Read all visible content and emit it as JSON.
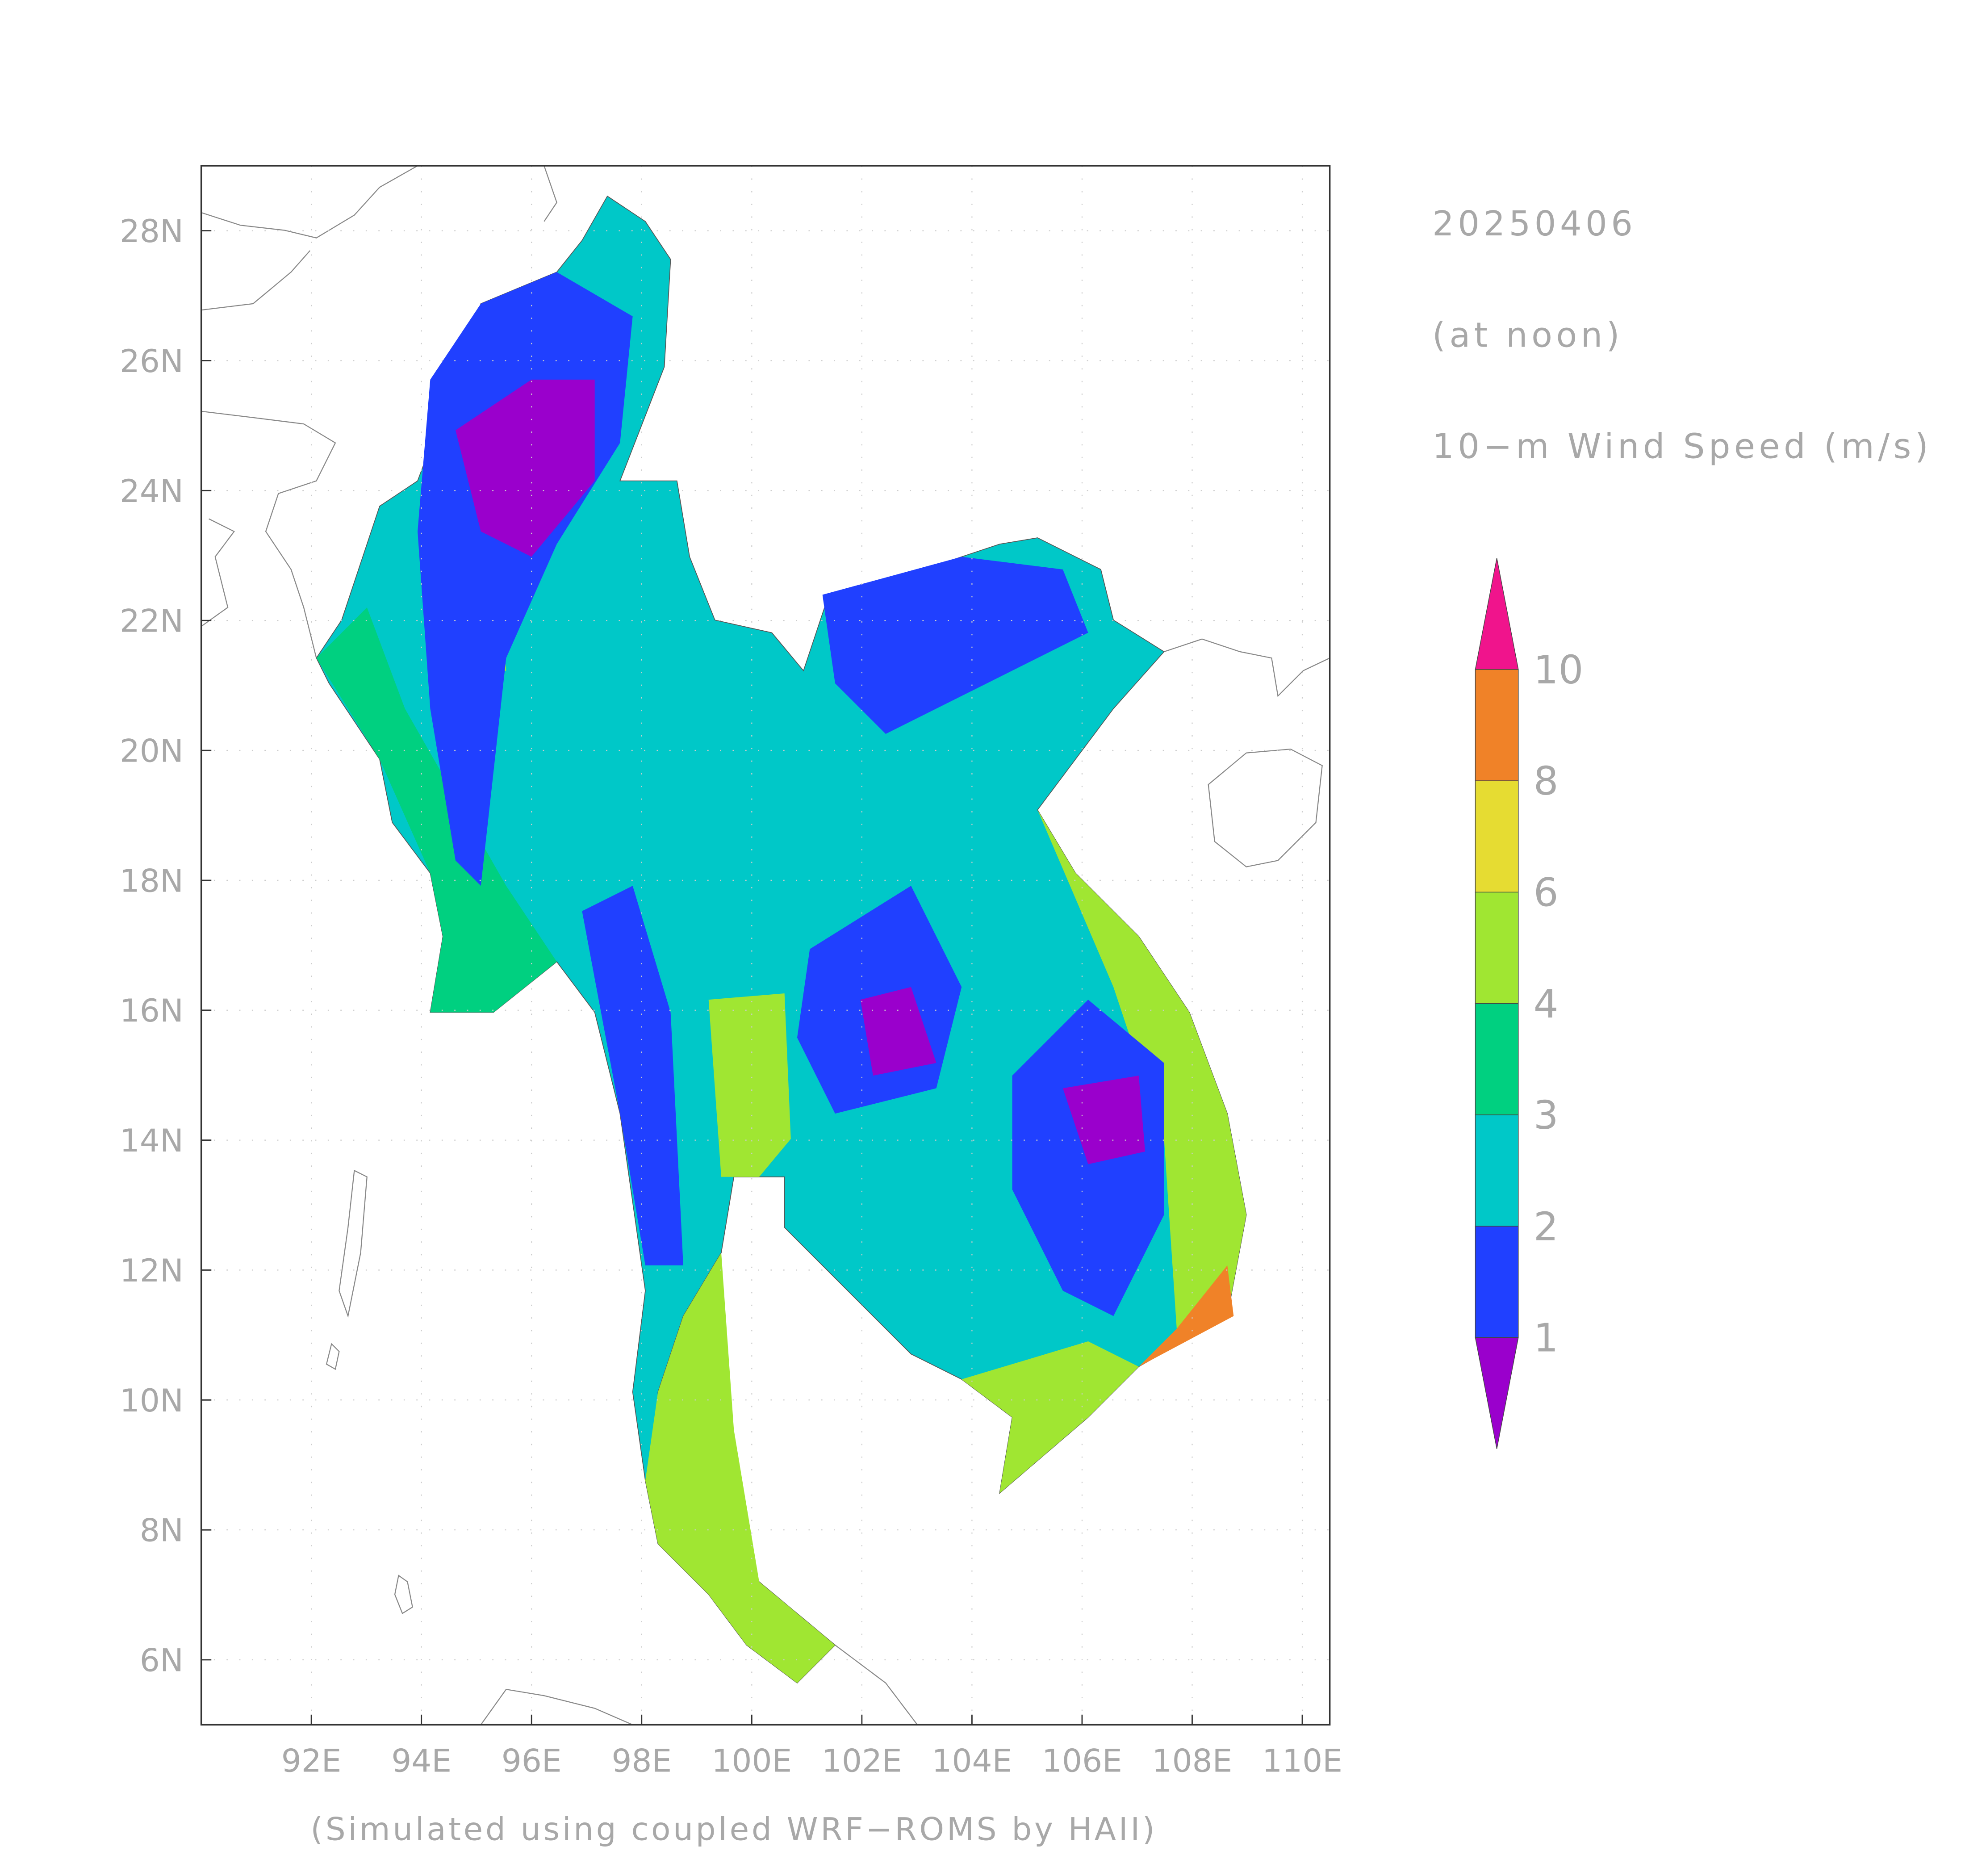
{
  "map": {
    "date": "20250406",
    "time": "(at noon)",
    "variable": "10−m Wind Speed (m/s)",
    "credit": "(Simulated using coupled WRF−ROMS by HAII)",
    "lon_range": [
      90,
      110.5
    ],
    "lat_range": [
      5,
      29
    ],
    "lon_ticks": [
      {
        "value": 92,
        "label": "92E"
      },
      {
        "value": 94,
        "label": "94E"
      },
      {
        "value": 96,
        "label": "96E"
      },
      {
        "value": 98,
        "label": "98E"
      },
      {
        "value": 100,
        "label": "100E"
      },
      {
        "value": 102,
        "label": "102E"
      },
      {
        "value": 104,
        "label": "104E"
      },
      {
        "value": 106,
        "label": "106E"
      },
      {
        "value": 108,
        "label": "108E"
      },
      {
        "value": 110,
        "label": "110E"
      }
    ],
    "lat_ticks": [
      {
        "value": 6,
        "label": "6N"
      },
      {
        "value": 8,
        "label": "8N"
      },
      {
        "value": 10,
        "label": "10N"
      },
      {
        "value": 12,
        "label": "12N"
      },
      {
        "value": 14,
        "label": "14N"
      },
      {
        "value": 16,
        "label": "16N"
      },
      {
        "value": 18,
        "label": "18N"
      },
      {
        "value": 20,
        "label": "20N"
      },
      {
        "value": 22,
        "label": "22N"
      },
      {
        "value": 24,
        "label": "24N"
      },
      {
        "value": 26,
        "label": "26N"
      },
      {
        "value": 28,
        "label": "28N"
      }
    ]
  },
  "colorbar": {
    "levels": [
      1,
      2,
      3,
      4,
      6,
      8,
      10
    ],
    "colors": [
      "#9a00cc",
      "#2040ff",
      "#00c8c8",
      "#00d080",
      "#a0e632",
      "#e6dc32",
      "#f08228",
      "#f0148c"
    ]
  }
}
